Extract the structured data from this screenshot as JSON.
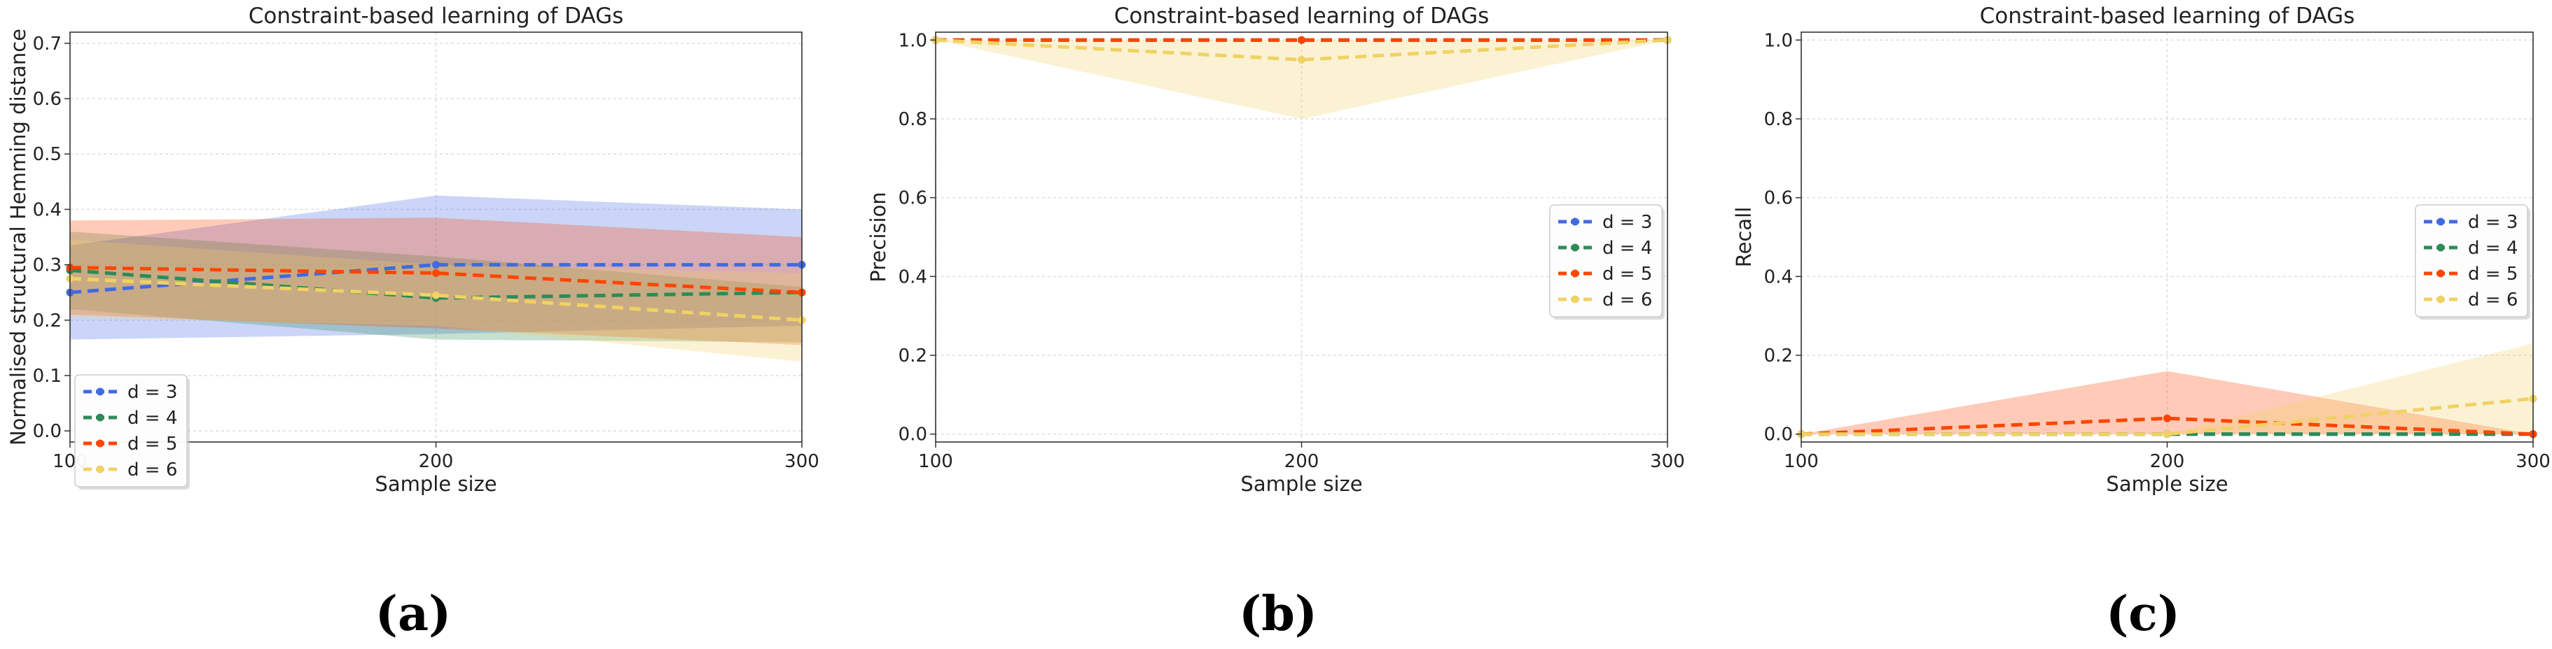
{
  "colors": {
    "d3": "#4169e1",
    "d4": "#2e8b57",
    "d5": "#ff4500",
    "d6": "#f0d264"
  },
  "captions": [
    "(a)",
    "(b)",
    "(c)"
  ],
  "chart_data": [
    {
      "type": "line",
      "title": "Constraint-based learning of DAGs",
      "xlabel": "Sample size",
      "ylabel": "Normalised structural Hemming distance",
      "x": [
        100,
        200,
        300
      ],
      "xlim": [
        100,
        300
      ],
      "ylim": [
        -0.02,
        0.72
      ],
      "yticks": [
        0.0,
        0.1,
        0.2,
        0.3,
        0.4,
        0.5,
        0.6,
        0.7
      ],
      "ytick_labels": [
        "0.0",
        "0.1",
        "0.2",
        "0.3",
        "0.4",
        "0.5",
        "0.6",
        "0.7"
      ],
      "xtick_labels": [
        "100",
        "200",
        "300"
      ],
      "grid": true,
      "legend_position": "lower-left",
      "series": [
        {
          "name": "d = 3",
          "color_key": "d3",
          "values": [
            0.25,
            0.3,
            0.3
          ],
          "lower": [
            0.165,
            0.175,
            0.19
          ],
          "upper": [
            0.335,
            0.425,
            0.4
          ]
        },
        {
          "name": "d = 4",
          "color_key": "d4",
          "values": [
            0.29,
            0.24,
            0.25
          ],
          "lower": [
            0.22,
            0.165,
            0.16
          ],
          "upper": [
            0.36,
            0.315,
            0.26
          ]
        },
        {
          "name": "d = 5",
          "color_key": "d5",
          "values": [
            0.295,
            0.285,
            0.25
          ],
          "lower": [
            0.21,
            0.185,
            0.155
          ],
          "upper": [
            0.38,
            0.385,
            0.35
          ]
        },
        {
          "name": "d = 6",
          "color_key": "d6",
          "values": [
            0.275,
            0.245,
            0.2
          ],
          "lower": [
            0.205,
            0.19,
            0.125
          ],
          "upper": [
            0.345,
            0.3,
            0.285
          ]
        }
      ]
    },
    {
      "type": "line",
      "title": "Constraint-based learning of DAGs",
      "xlabel": "Sample size",
      "ylabel": "Precision",
      "x": [
        100,
        200,
        300
      ],
      "xlim": [
        100,
        300
      ],
      "ylim": [
        -0.02,
        1.02
      ],
      "yticks": [
        0.0,
        0.2,
        0.4,
        0.6,
        0.8,
        1.0
      ],
      "ytick_labels": [
        "0.0",
        "0.2",
        "0.4",
        "0.6",
        "0.8",
        "1.0"
      ],
      "xtick_labels": [
        "100",
        "200",
        "300"
      ],
      "grid": true,
      "legend_position": "center-right",
      "series": [
        {
          "name": "d = 3",
          "color_key": "d3",
          "values": [
            1.0,
            1.0,
            1.0
          ],
          "lower": [
            1.0,
            1.0,
            1.0
          ],
          "upper": [
            1.0,
            1.0,
            1.0
          ]
        },
        {
          "name": "d = 4",
          "color_key": "d4",
          "values": [
            1.0,
            1.0,
            1.0
          ],
          "lower": [
            1.0,
            1.0,
            1.0
          ],
          "upper": [
            1.0,
            1.0,
            1.0
          ]
        },
        {
          "name": "d = 5",
          "color_key": "d5",
          "values": [
            1.0,
            1.0,
            1.0
          ],
          "lower": [
            1.0,
            1.0,
            1.0
          ],
          "upper": [
            1.0,
            1.0,
            1.0
          ]
        },
        {
          "name": "d = 6",
          "color_key": "d6",
          "values": [
            1.0,
            0.95,
            1.0
          ],
          "lower": [
            1.0,
            0.8,
            1.0
          ],
          "upper": [
            1.0,
            1.0,
            1.0
          ]
        }
      ]
    },
    {
      "type": "line",
      "title": "Constraint-based learning of DAGs",
      "xlabel": "Sample size",
      "ylabel": "Recall",
      "x": [
        100,
        200,
        300
      ],
      "xlim": [
        100,
        300
      ],
      "ylim": [
        -0.02,
        1.02
      ],
      "yticks": [
        0.0,
        0.2,
        0.4,
        0.6,
        0.8,
        1.0
      ],
      "ytick_labels": [
        "0.0",
        "0.2",
        "0.4",
        "0.6",
        "0.8",
        "1.0"
      ],
      "xtick_labels": [
        "100",
        "200",
        "300"
      ],
      "grid": true,
      "legend_position": "center-right",
      "series": [
        {
          "name": "d = 3",
          "color_key": "d3",
          "values": [
            0.0,
            0.0,
            0.0
          ],
          "lower": [
            0.0,
            0.0,
            0.0
          ],
          "upper": [
            0.0,
            0.0,
            0.0
          ]
        },
        {
          "name": "d = 4",
          "color_key": "d4",
          "values": [
            0.0,
            0.0,
            0.0
          ],
          "lower": [
            0.0,
            0.0,
            0.0
          ],
          "upper": [
            0.0,
            0.0,
            0.0
          ]
        },
        {
          "name": "d = 5",
          "color_key": "d5",
          "values": [
            0.0,
            0.04,
            0.0
          ],
          "lower": [
            0.0,
            0.0,
            0.0
          ],
          "upper": [
            0.0,
            0.16,
            0.0
          ]
        },
        {
          "name": "d = 6",
          "color_key": "d6",
          "values": [
            0.0,
            0.0,
            0.09
          ],
          "lower": [
            0.0,
            0.0,
            0.0
          ],
          "upper": [
            0.0,
            0.0,
            0.23
          ]
        }
      ]
    }
  ]
}
